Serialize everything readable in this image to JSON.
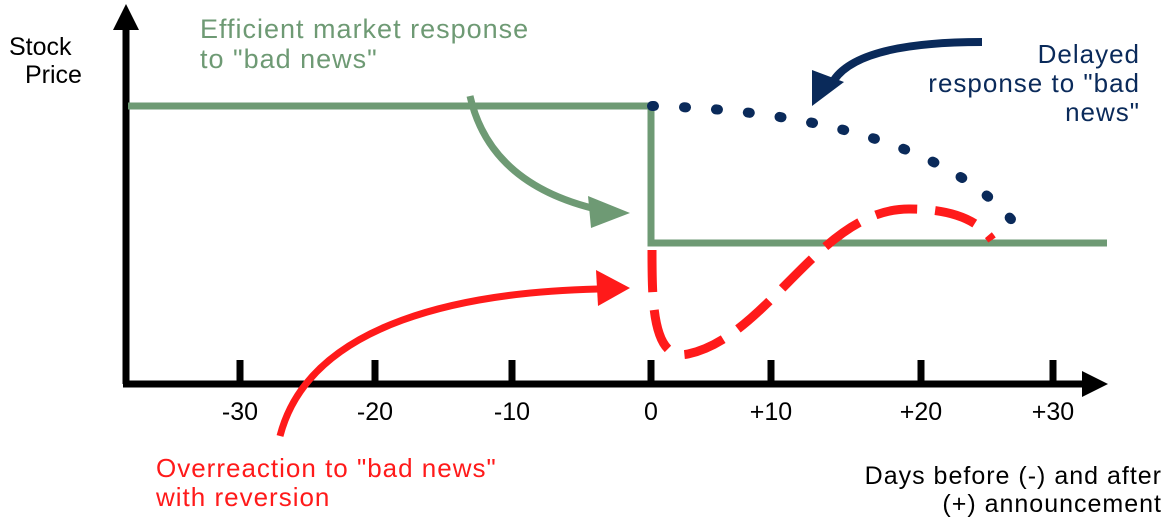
{
  "y_axis_label": [
    "Stock",
    "Price"
  ],
  "x_axis_label": [
    "Days before (-) and after",
    "(+) announcement"
  ],
  "ticks": [
    "-30",
    "-20",
    "-10",
    "0",
    "+10",
    "+20",
    "+30"
  ],
  "annotations": {
    "efficient": [
      "Efficient market response",
      "to \"bad news\""
    ],
    "delayed": [
      "Delayed",
      "response to \"bad",
      "news\""
    ],
    "overreaction": [
      "Overreaction to \"bad news\"",
      "with reversion"
    ]
  },
  "colors": {
    "efficient": "#6e9a74",
    "delayed": "#0a2a5a",
    "overreaction": "#ff1a1a",
    "axis": "#000000"
  }
}
